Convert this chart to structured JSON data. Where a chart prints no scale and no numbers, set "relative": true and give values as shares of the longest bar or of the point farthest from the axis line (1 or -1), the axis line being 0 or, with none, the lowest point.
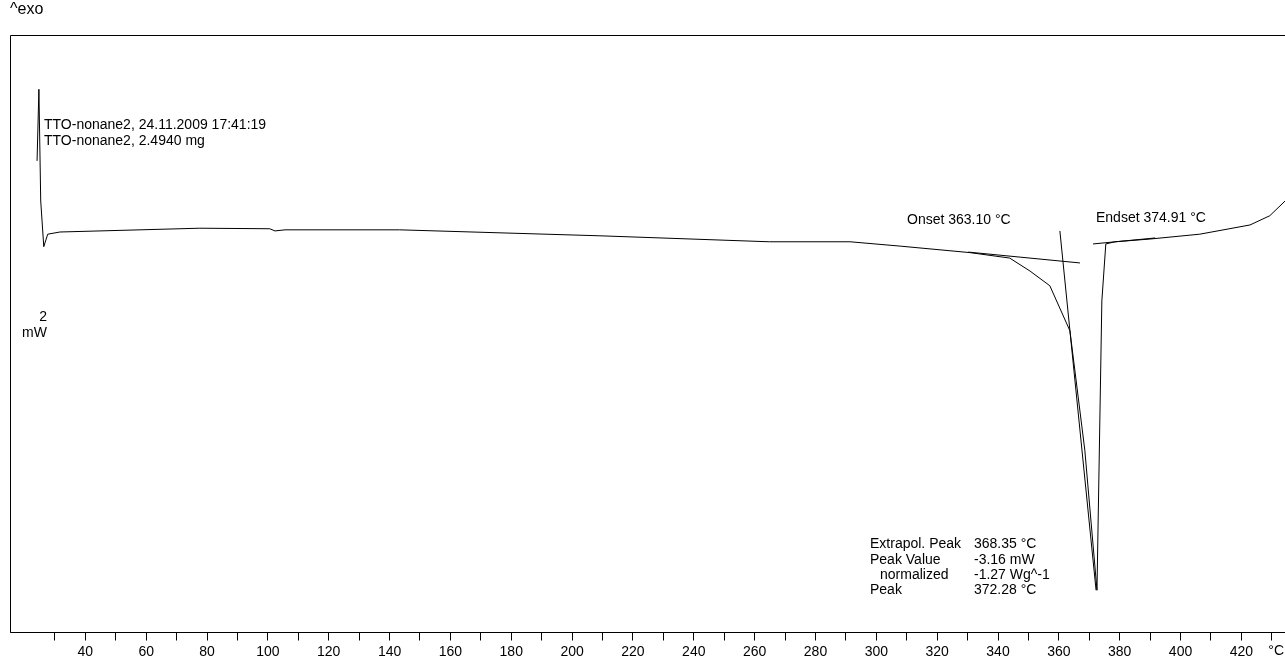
{
  "chart_data": {
    "type": "line",
    "relative": true,
    "xlabel": "°C",
    "xlim": [
      15.4,
      434.5
    ],
    "xticks": [
      {
        "value": 30,
        "label": null
      },
      40,
      {
        "value": 50,
        "label": null
      },
      60,
      {
        "value": 70,
        "label": null
      },
      80,
      {
        "value": 90,
        "label": null
      },
      100,
      {
        "value": 110,
        "label": null
      },
      120,
      {
        "value": 130,
        "label": null
      },
      140,
      {
        "value": 150,
        "label": null
      },
      160,
      {
        "value": 170,
        "label": null
      },
      180,
      {
        "value": 190,
        "label": null
      },
      200,
      {
        "value": 210,
        "label": null
      },
      220,
      {
        "value": 230,
        "label": null
      },
      240,
      {
        "value": 250,
        "label": null
      },
      260,
      {
        "value": 270,
        "label": null
      },
      280,
      {
        "value": 290,
        "label": null
      },
      300,
      {
        "value": 310,
        "label": null
      },
      320,
      {
        "value": 330,
        "label": null
      },
      340,
      {
        "value": 350,
        "label": null
      },
      360,
      {
        "value": 370,
        "label": null
      },
      380,
      {
        "value": 390,
        "label": null
      },
      400,
      {
        "value": 410,
        "label": null
      },
      420,
      {
        "value": 430,
        "label": null
      }
    ],
    "grid": false,
    "marker": "none",
    "line_style": "solid",
    "series": [
      {
        "color": "#000000",
        "x": [
          24.3,
          24.9,
          25.5,
          26.5,
          27.8,
          31.8,
          77.8,
          100.8,
          102.5,
          105.8,
          143.5,
          209.3,
          265,
          291.5,
          308,
          331,
          344,
          350.7,
          357.2,
          363.8,
          368.7,
          372.7,
          374.3,
          375.6,
          378.6,
          390,
          406.5,
          423,
          429.5,
          434.5
        ],
        "values": [
          0.868,
          1.0,
          0.794,
          0.71,
          0.733,
          0.737,
          0.744,
          0.743,
          0.739,
          0.741,
          0.741,
          0.73,
          0.719,
          0.719,
          0.711,
          0.699,
          0.689,
          0.665,
          0.638,
          0.555,
          0.335,
          0.077,
          0.61,
          0.715,
          0.719,
          0.724,
          0.733,
          0.75,
          0.767,
          0.794
        ]
      },
      {
        "color": "#000000",
        "x": [
          330.4,
          367.1
        ],
        "values": [
          0.7,
          0.68
        ]
      },
      {
        "color": "#000000",
        "x": [
          360.5,
          372.4
        ],
        "values": [
          0.739,
          0.077
        ]
      },
      {
        "color": "#000000",
        "x": [
          371.4,
          391.8
        ],
        "values": [
          0.715,
          0.726
        ]
      }
    ],
    "annotations": [
      "^exo",
      "TTO-nonane2, 24.11.2009 17:41:19",
      "TTO-nonane2, 2.4940 mg",
      "2",
      "mW",
      "Onset  363.10 °C",
      "Endset  374.91 °C",
      "Extrapol. Peak",
      "368.35 °C",
      "Peak Value",
      "-3.16 mW",
      "  normalized",
      "-1.27 Wg^-1",
      "Peak",
      "372.28 °C"
    ]
  }
}
